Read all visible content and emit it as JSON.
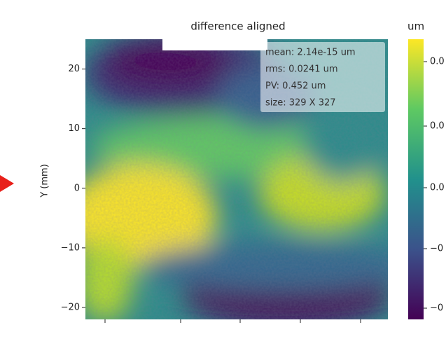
{
  "chart_data": {
    "type": "heatmap",
    "title": "difference aligned",
    "ylabel": "Y (mm)",
    "ylim": [
      -22,
      25
    ],
    "yticks": [
      20,
      10,
      0,
      {
        "value": -10,
        "label": "−10"
      },
      {
        "value": -20,
        "label": "−20"
      }
    ],
    "annotations": [
      "mean: 2.14e-15 um",
      "rms: 0.0241 um",
      "PV: 0.452 um",
      "size: 329 X 327"
    ],
    "colorbar": {
      "label": "um",
      "colormap": "viridis",
      "ticklabels": [
        "0.0",
        "0.0",
        "0.0",
        "−0",
        "−0"
      ]
    }
  }
}
